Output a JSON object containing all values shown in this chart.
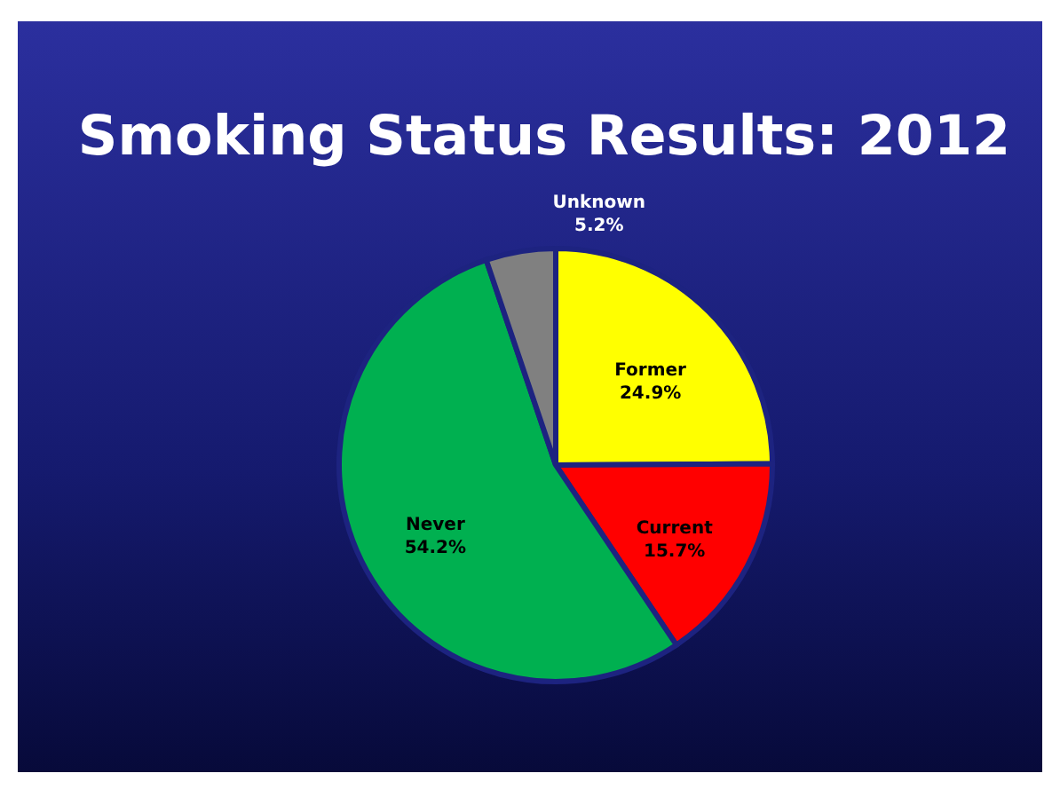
{
  "chart_data": {
    "type": "pie",
    "title": "Smoking Status Results: 2012",
    "categories": [
      "Former",
      "Current",
      "Never",
      "Unknown"
    ],
    "values": [
      24.9,
      15.7,
      54.2,
      5.2
    ],
    "colors": [
      "#ffff00",
      "#ff0000",
      "#00b050",
      "#808080"
    ],
    "value_labels": [
      "24.9%",
      "15.7%",
      "54.2%",
      "5.2%"
    ],
    "legend": false
  }
}
